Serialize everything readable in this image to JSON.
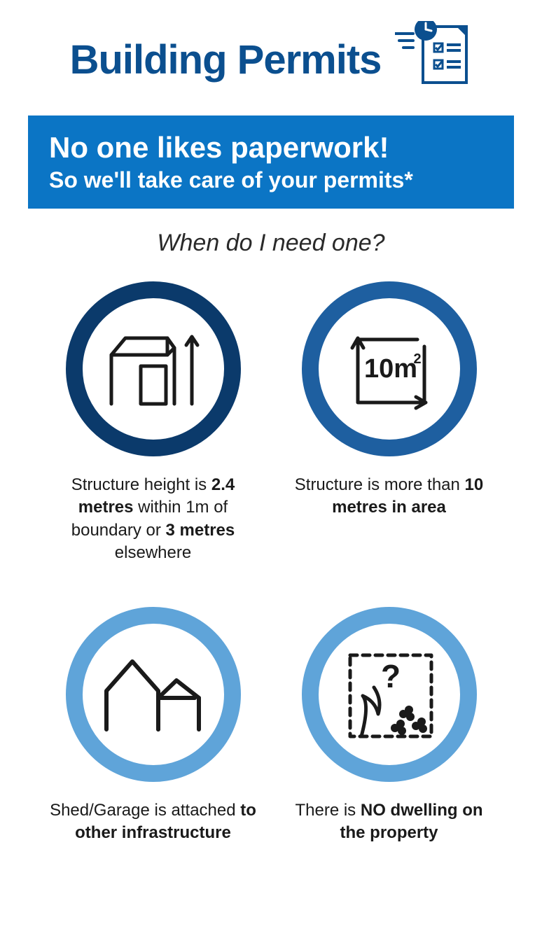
{
  "title": "Building Permits",
  "banner": {
    "line1": "No one likes paperwork!",
    "line2": "So we'll take care of your permits*"
  },
  "subheading": "When do I need one?",
  "items": [
    {
      "ring_color": "#0b3a6b",
      "icon": "shed-height",
      "caption_html": "Structure height is <b>2.4 metres</b> within 1m of boundary or <b>3 metres</b> elsewhere"
    },
    {
      "ring_color": "#1e5fa0",
      "icon": "area-10m2",
      "icon_label": "10m²",
      "caption_html": "Structure is more than <b>10 metres in area</b>"
    },
    {
      "ring_color": "#5fa4d9",
      "icon": "attached-shed",
      "caption_html": "Shed/Garage is attached <b>to other infrastructure</b>"
    },
    {
      "ring_color": "#5fa4d9",
      "icon": "no-dwelling",
      "caption_html": "There is <b>NO dwelling on the property</b>"
    }
  ],
  "colors": {
    "title": "#0b4f8f",
    "banner_bg": "#0b75c5",
    "text": "#1a1a1a",
    "ring_dark": "#0b3a6b",
    "ring_mid": "#1e5fa0",
    "ring_light": "#5fa4d9"
  },
  "typography": {
    "title_fontsize": 58,
    "banner_line1_fontsize": 42,
    "banner_line2_fontsize": 32,
    "subheading_fontsize": 34,
    "caption_fontsize": 24
  }
}
